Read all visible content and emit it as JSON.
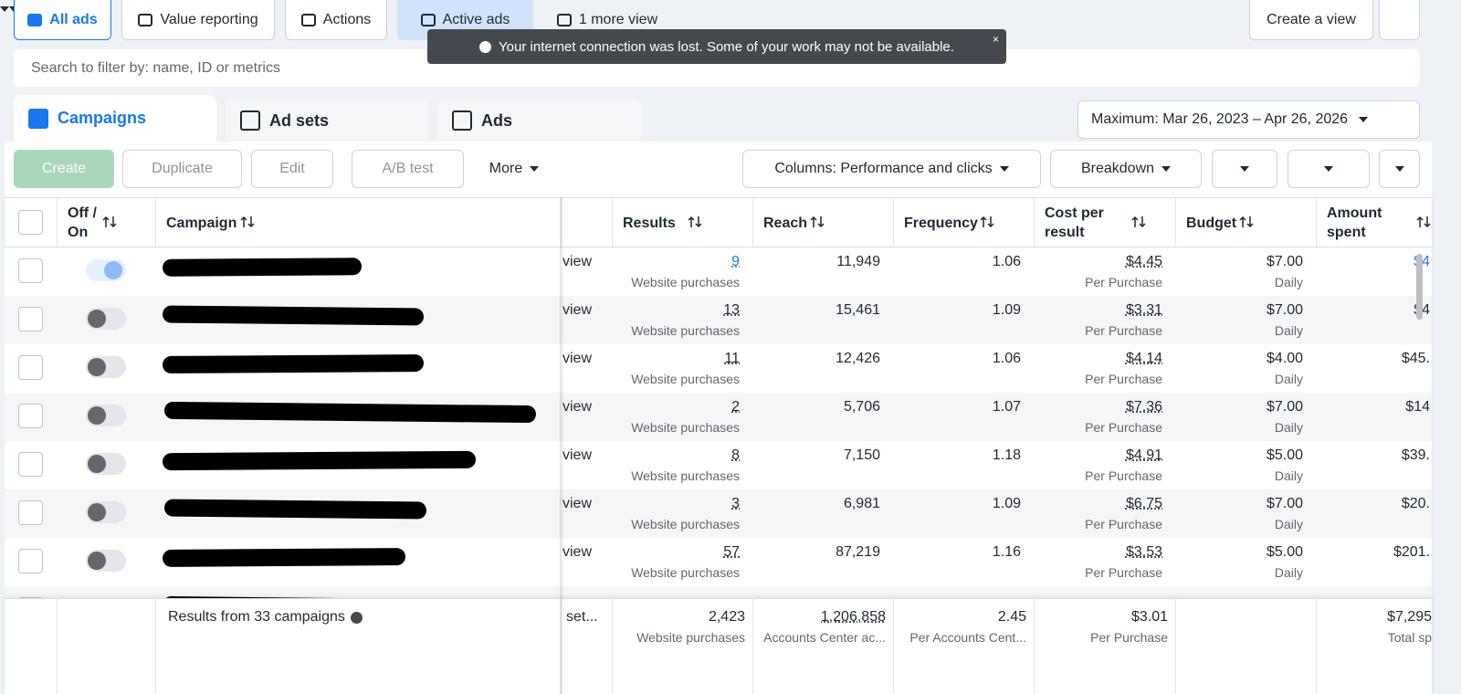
{
  "top_tabs": [
    "All ads",
    "Value reporting",
    "Actions",
    "Active ads",
    "1 more view"
  ],
  "create_view": "Create a view",
  "toast": "Your internet connection was lost. Some of your work may not be available.",
  "search_placeholder": "Search to filter by: name, ID or metrics",
  "level_tabs": [
    "Campaigns",
    "Ad sets",
    "Ads"
  ],
  "date_range": "Maximum: Mar 26, 2023 – Apr 26, 2026",
  "toolbar": {
    "create": "Create",
    "duplicate": "Duplicate",
    "edit": "Edit",
    "ab_test": "A/B test",
    "more": "More",
    "columns": "Columns: Performance and clicks",
    "breakdown": "Breakdown"
  },
  "table": {
    "headers": [
      "Off / On",
      "Campaign",
      "Results",
      "Reach",
      "Frequency",
      "Cost per result",
      "Budget",
      "Amount spent"
    ],
    "rows": [
      {
        "on": true,
        "delivery": "view",
        "results": "9",
        "results_type": "Website purchases",
        "reach": "11,949",
        "frequency": "1.06",
        "cost": "$4.45",
        "cost_type": "Per Purchase",
        "budget": "$7.00",
        "budget_type": "Daily",
        "spent": "$4"
      },
      {
        "on": false,
        "delivery": "view",
        "results": "13",
        "results_type": "Website purchases",
        "reach": "15,461",
        "frequency": "1.09",
        "cost": "$3.31",
        "cost_type": "Per Purchase",
        "budget": "$7.00",
        "budget_type": "Daily",
        "spent": "$4"
      },
      {
        "on": false,
        "delivery": "view",
        "results": "11",
        "results_type": "Website purchases",
        "reach": "12,426",
        "frequency": "1.06",
        "cost": "$4.14",
        "cost_type": "Per Purchase",
        "budget": "$4.00",
        "budget_type": "Daily",
        "spent": "$45."
      },
      {
        "on": false,
        "delivery": "view",
        "results": "2",
        "results_type": "Website purchases",
        "reach": "5,706",
        "frequency": "1.07",
        "cost": "$7.36",
        "cost_type": "Per Purchase",
        "budget": "$7.00",
        "budget_type": "Daily",
        "spent": "$14"
      },
      {
        "on": false,
        "delivery": "view",
        "results": "8",
        "results_type": "Website purchases",
        "reach": "7,150",
        "frequency": "1.18",
        "cost": "$4.91",
        "cost_type": "Per Purchase",
        "budget": "$5.00",
        "budget_type": "Daily",
        "spent": "$39."
      },
      {
        "on": false,
        "delivery": "view",
        "results": "3",
        "results_type": "Website purchases",
        "reach": "6,981",
        "frequency": "1.09",
        "cost": "$6.75",
        "cost_type": "Per Purchase",
        "budget": "$7.00",
        "budget_type": "Daily",
        "spent": "$20."
      },
      {
        "on": false,
        "delivery": "view",
        "results": "57",
        "results_type": "Website purchases",
        "reach": "87,219",
        "frequency": "1.16",
        "cost": "$3.53",
        "cost_type": "Per Purchase",
        "budget": "$5.00",
        "budget_type": "Daily",
        "spent": "$201."
      }
    ],
    "footer": {
      "label": "Results from 33 campaigns",
      "delivery": "set...",
      "results": "2,423",
      "results_type": "Website purchases",
      "reach": "1,206,858",
      "reach_type": "Accounts Center ac...",
      "frequency": "2.45",
      "frequency_type": "Per Accounts Cent...",
      "cost": "$3.01",
      "cost_type": "Per Purchase",
      "spent": "$7,295",
      "spent_type": "Total sp"
    }
  }
}
